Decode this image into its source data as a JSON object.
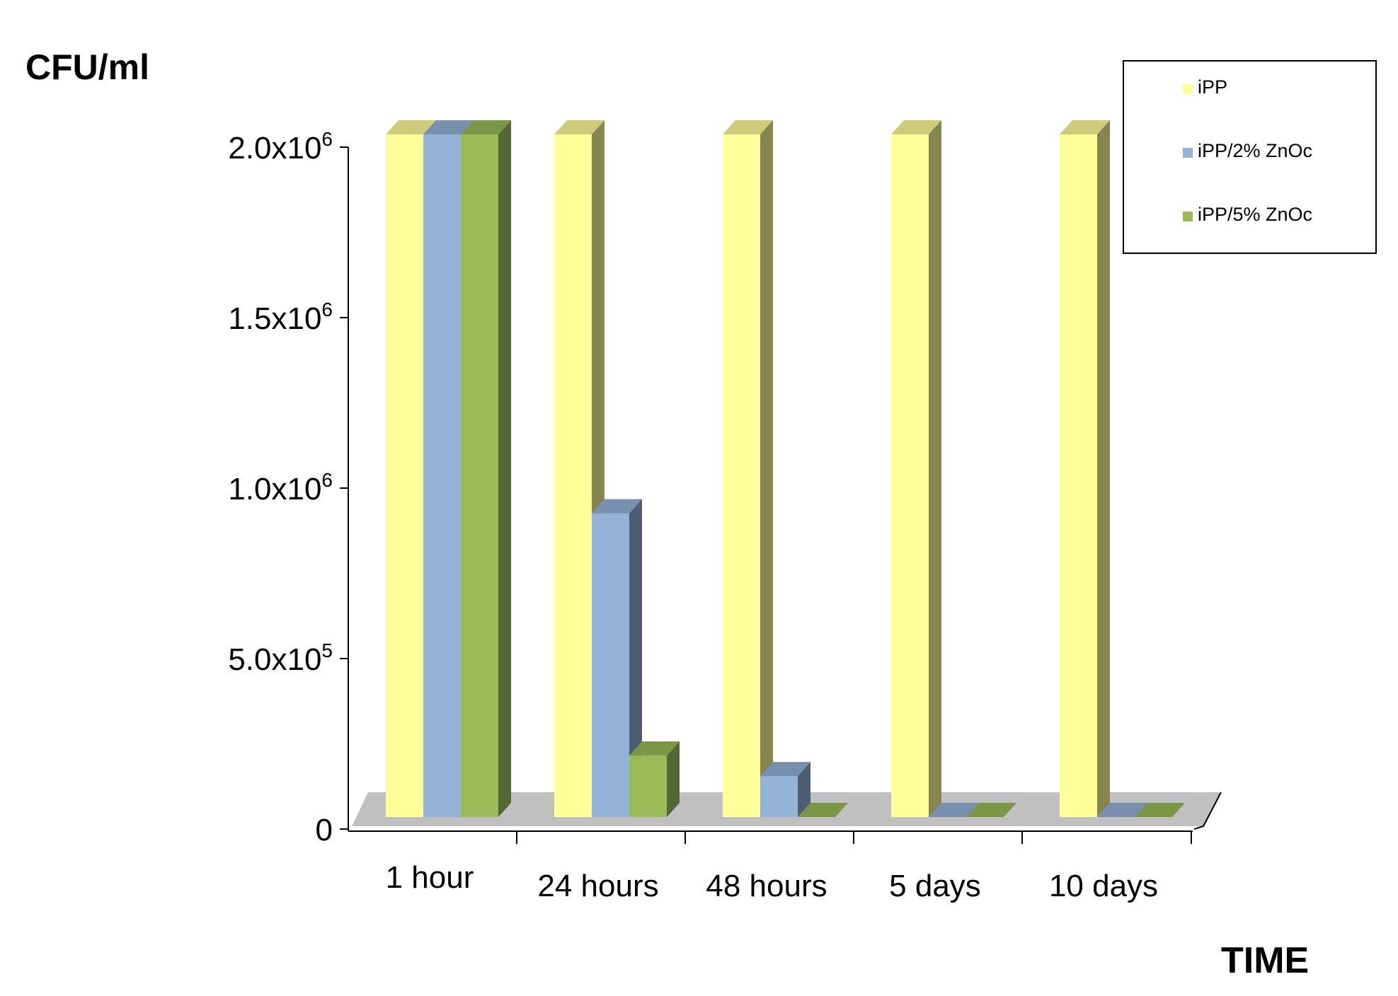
{
  "chart_data": {
    "type": "bar",
    "ylabel": "CFU/ml",
    "xlabel": "TIME",
    "categories": [
      "1 hour",
      "24 hours",
      "48 hours",
      "5 days",
      "10 days"
    ],
    "series": [
      {
        "name": "iPP",
        "values": [
          2000000,
          2000000,
          2000000,
          2000000,
          2000000
        ]
      },
      {
        "name": "iPP/2% ZnOc",
        "values": [
          2000000,
          890000,
          120000,
          0,
          0
        ]
      },
      {
        "name": "iPP/5% ZnOc",
        "values": [
          2000000,
          180000,
          0,
          0,
          0
        ]
      }
    ],
    "ylim": [
      0,
      2000000
    ],
    "y_ticks": [
      {
        "value": 0,
        "mantissa": "0",
        "exponent": ""
      },
      {
        "value": 500000,
        "mantissa": "5.0x10",
        "exponent": "5"
      },
      {
        "value": 1000000,
        "mantissa": "1.0x10",
        "exponent": "6"
      },
      {
        "value": 1500000,
        "mantissa": "1.5x10",
        "exponent": "6"
      },
      {
        "value": 2000000,
        "mantissa": "2.0x10",
        "exponent": "6"
      }
    ],
    "grid": false,
    "legend_position": "top-right",
    "style": "3d-clustered-column",
    "colors": {
      "iPP": {
        "front": "#FFFF99",
        "top": "#CCCC7A",
        "side": "#858551"
      },
      "iPP/2% ZnOc": {
        "front": "#95B3D7",
        "top": "#7890AD",
        "side": "#4E5E72"
      },
      "iPP/5% ZnOc": {
        "front": "#9BBB59",
        "top": "#7C9647",
        "side": "#556735"
      },
      "floor": "#C0C0C0"
    }
  }
}
